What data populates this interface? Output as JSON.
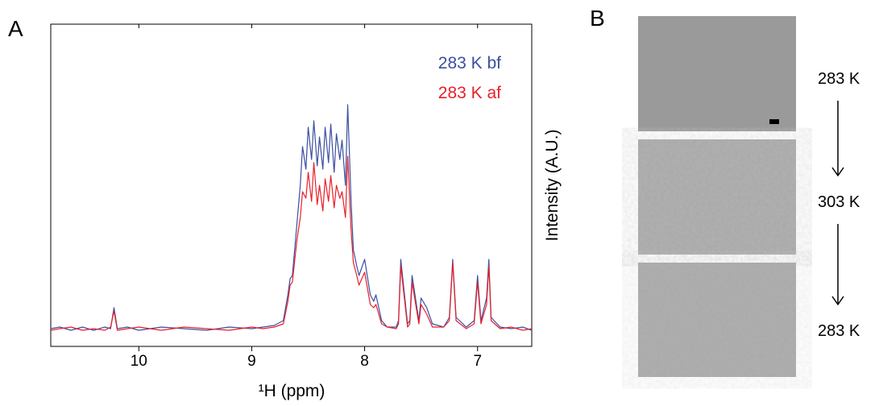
{
  "panel_labels": [
    "A",
    "B"
  ],
  "chart_data": {
    "type": "line",
    "xlabel": "¹H (ppm)",
    "ylabel": "Intensity (A.U.)",
    "xlim": [
      10.78,
      6.52
    ],
    "xticks": [
      10,
      9,
      8,
      7
    ],
    "ylim": [
      0,
      100
    ],
    "legend": "top-right",
    "x": [
      10.78,
      10.7,
      10.6,
      10.5,
      10.4,
      10.3,
      10.25,
      10.22,
      10.19,
      10.1,
      10.0,
      9.8,
      9.6,
      9.4,
      9.2,
      9.0,
      8.9,
      8.8,
      8.72,
      8.68,
      8.66,
      8.64,
      8.6,
      8.57,
      8.55,
      8.52,
      8.5,
      8.47,
      8.45,
      8.42,
      8.4,
      8.37,
      8.35,
      8.32,
      8.3,
      8.27,
      8.25,
      8.22,
      8.2,
      8.17,
      8.15,
      8.12,
      8.1,
      8.07,
      8.05,
      8.0,
      7.95,
      7.92,
      7.9,
      7.85,
      7.8,
      7.72,
      7.7,
      7.68,
      7.62,
      7.6,
      7.58,
      7.52,
      7.5,
      7.45,
      7.4,
      7.3,
      7.25,
      7.22,
      7.19,
      7.1,
      7.03,
      7.0,
      6.97,
      6.92,
      6.9,
      6.88,
      6.8,
      6.7,
      6.6,
      6.52
    ],
    "series": [
      {
        "name": "283 K bf",
        "color": "#3a4fa0",
        "values": [
          5.5,
          6,
          5,
          6,
          5,
          6,
          5.5,
          12,
          5.5,
          6,
          5,
          6,
          5.5,
          5,
          6,
          5.5,
          6,
          6.5,
          8,
          16,
          21,
          22,
          38,
          50,
          62,
          55,
          68,
          58,
          70,
          56,
          65,
          55,
          68,
          57,
          69,
          54,
          66,
          58,
          64,
          50,
          75,
          45,
          30,
          25,
          22,
          27,
          16,
          14,
          16,
          8,
          6,
          6,
          8,
          27,
          7,
          8,
          22,
          8,
          15,
          12,
          7,
          6,
          9,
          27,
          9,
          6,
          8,
          22,
          8,
          15,
          27,
          9,
          6,
          5.5,
          6,
          5
        ]
      },
      {
        "name": "283 K af",
        "color": "#e8202a",
        "values": [
          5,
          5.5,
          6,
          5,
          5.5,
          5,
          6,
          11,
          5,
          5.5,
          6,
          5,
          6,
          5.5,
          5,
          6,
          5.5,
          6,
          7,
          14,
          19,
          20,
          33,
          40,
          48,
          46,
          54,
          45,
          57,
          44,
          50,
          42,
          52,
          45,
          53,
          43,
          50,
          46,
          48,
          40,
          59,
          36,
          26,
          22,
          19,
          23,
          13,
          12,
          13,
          7,
          6,
          5.5,
          7,
          25,
          6,
          7,
          20,
          7,
          13,
          10,
          6,
          6,
          8,
          26,
          8,
          5.5,
          7,
          20,
          7,
          13,
          25,
          8,
          5.5,
          6,
          5,
          5.5
        ]
      }
    ]
  },
  "panel_b": {
    "temperatures": [
      "283 K",
      "303 K",
      "283 K"
    ]
  }
}
